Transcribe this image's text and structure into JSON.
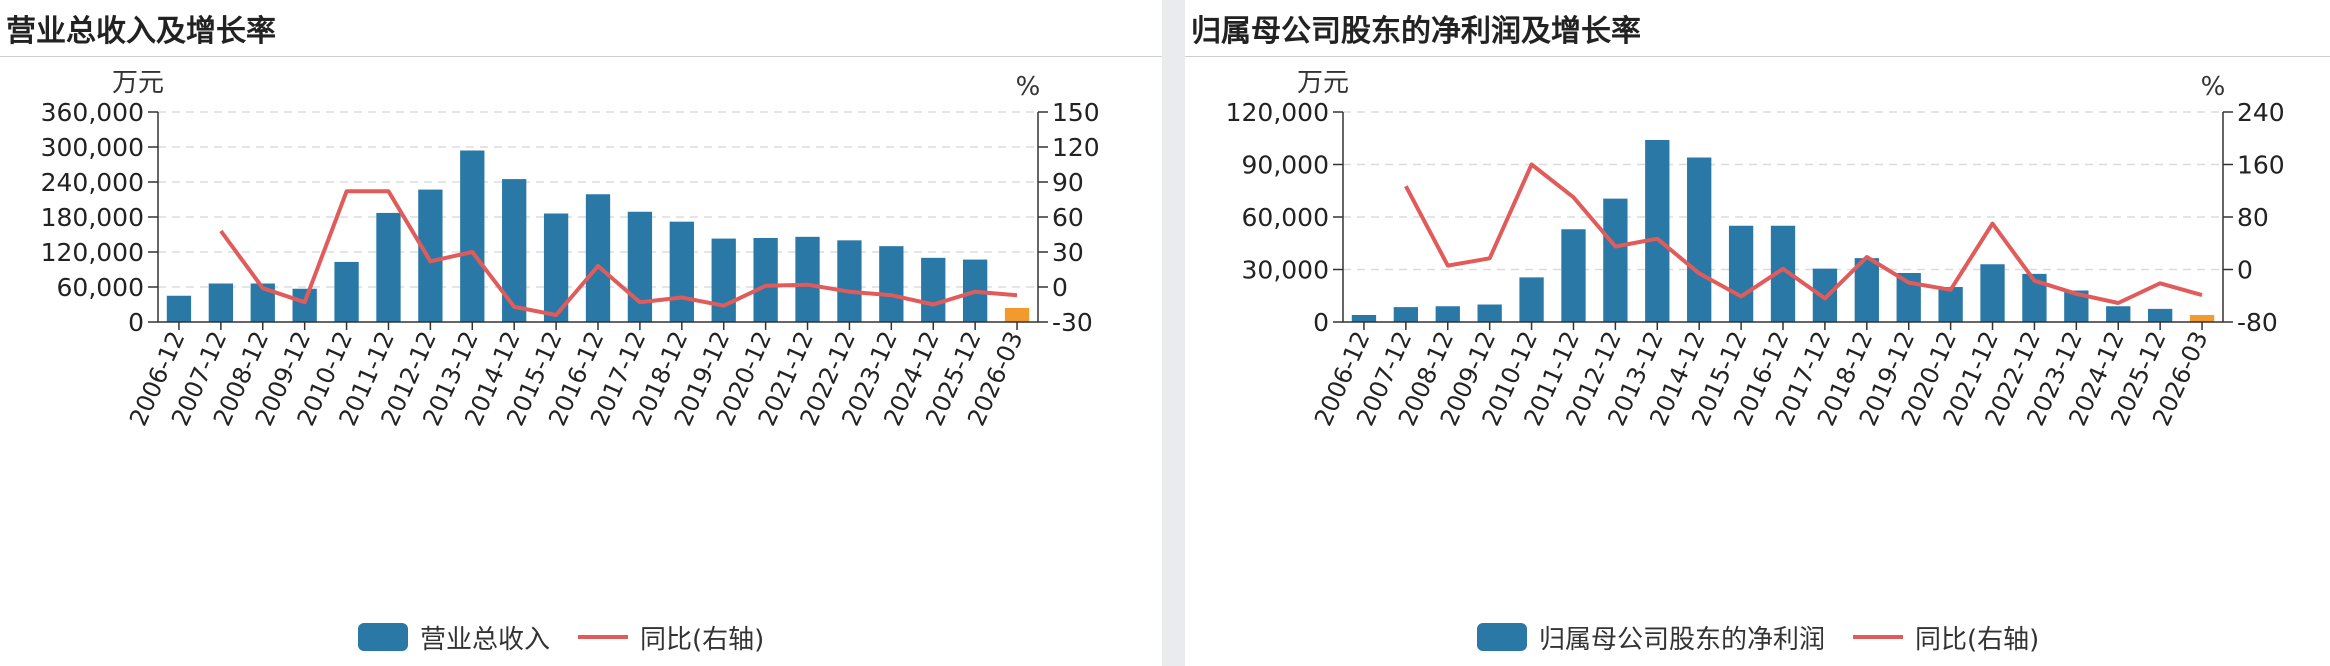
{
  "colors": {
    "bar": "#2a78a6",
    "bar_forecast": "#f29a2e",
    "line": "#e15b5b",
    "grid": "#d9dde2"
  },
  "chart_data": [
    {
      "type": "bar",
      "title": "营业总收入及增长率",
      "left_unit": "万元",
      "right_unit": "%",
      "categories": [
        "2006-12",
        "2007-12",
        "2008-12",
        "2009-12",
        "2010-12",
        "2011-12",
        "2012-12",
        "2013-12",
        "2014-12",
        "2015-12",
        "2016-12",
        "2017-12",
        "2018-12",
        "2019-12",
        "2020-12",
        "2021-12",
        "2022-12",
        "2023-12",
        "2024-12",
        "2025-12",
        "2026-03"
      ],
      "left_axis": {
        "min": 0,
        "max": 360000,
        "ticks": [
          "0",
          "60,000",
          "120,000",
          "180,000",
          "240,000",
          "300,000",
          "360,000"
        ]
      },
      "right_axis": {
        "min": -30,
        "max": 150,
        "ticks": [
          "-30",
          "0",
          "30",
          "60",
          "90",
          "120",
          "150"
        ]
      },
      "series": [
        {
          "name": "营业总收入",
          "kind": "bar",
          "axis": "left",
          "values": [
            45000,
            66000,
            66000,
            57000,
            103000,
            187000,
            227000,
            294000,
            245000,
            186000,
            219000,
            189000,
            172000,
            143000,
            144000,
            146000,
            140000,
            130000,
            110000,
            107000,
            24000
          ]
        },
        {
          "name": "同比(右轴)",
          "kind": "line",
          "axis": "right",
          "values": [
            null,
            48,
            -1,
            -13,
            82,
            82,
            22,
            30,
            -17,
            -24,
            18,
            -13,
            -9,
            -16,
            1,
            2,
            -4,
            -7,
            -15,
            -4,
            -7
          ]
        }
      ],
      "forecast_index": 20,
      "grid": true,
      "legend_position": "bottom"
    },
    {
      "type": "bar",
      "title": "归属母公司股东的净利润及增长率",
      "left_unit": "万元",
      "right_unit": "%",
      "categories": [
        "2006-12",
        "2007-12",
        "2008-12",
        "2009-12",
        "2010-12",
        "2011-12",
        "2012-12",
        "2013-12",
        "2014-12",
        "2015-12",
        "2016-12",
        "2017-12",
        "2018-12",
        "2019-12",
        "2020-12",
        "2021-12",
        "2022-12",
        "2023-12",
        "2024-12",
        "2025-12",
        "2026-03"
      ],
      "left_axis": {
        "min": 0,
        "max": 120000,
        "ticks": [
          "0",
          "30,000",
          "60,000",
          "90,000",
          "120,000"
        ]
      },
      "right_axis": {
        "min": -80,
        "max": 240,
        "ticks": [
          "-80",
          "0",
          "80",
          "160",
          "240"
        ]
      },
      "series": [
        {
          "name": "归属母公司股东的净利润",
          "kind": "bar",
          "axis": "left",
          "values": [
            4000,
            8500,
            9000,
            10000,
            25500,
            53000,
            70500,
            104000,
            94000,
            55000,
            55000,
            30500,
            36500,
            28000,
            20000,
            33000,
            27500,
            18000,
            9000,
            7500,
            4000
          ]
        },
        {
          "name": "同比(右轴)",
          "kind": "line",
          "axis": "right",
          "values": [
            null,
            127,
            6,
            17,
            160,
            110,
            35,
            47,
            -6,
            -41,
            1,
            -44,
            19,
            -20,
            -31,
            70,
            -17,
            -37,
            -51,
            -21,
            -39
          ]
        }
      ],
      "forecast_index": 20,
      "grid": true,
      "legend_position": "bottom"
    }
  ]
}
